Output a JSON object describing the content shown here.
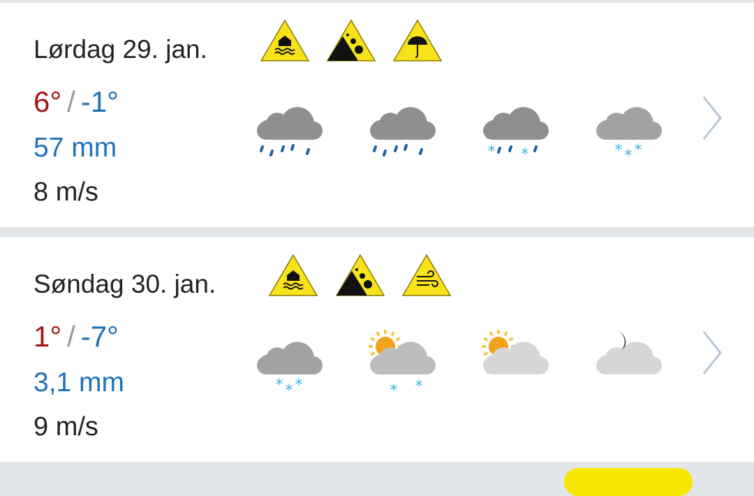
{
  "days": [
    {
      "title": "Lørdag 29. jan.",
      "temp_high": "6°",
      "temp_sep": "/",
      "temp_low": "-1°",
      "precipitation": "57 mm",
      "wind": "8 m/s",
      "warnings": [
        "flood-warning-icon",
        "landslide-warning-icon",
        "rain-warning-icon"
      ],
      "forecast_icons": [
        "cloud-heavy-rain-icon",
        "cloud-heavy-rain-icon",
        "cloud-sleet-icon",
        "cloud-snow-icon"
      ]
    },
    {
      "title": "Søndag 30. jan.",
      "temp_high": "1°",
      "temp_sep": "/",
      "temp_low": "-7°",
      "precipitation": "3,1 mm",
      "wind": "9 m/s",
      "warnings": [
        "flood-warning-icon",
        "landslide-warning-icon",
        "wind-warning-icon"
      ],
      "forecast_icons": [
        "cloud-snow-icon",
        "partly-cloudy-snow-icon",
        "partly-cloudy-day-icon",
        "partly-cloudy-night-icon"
      ]
    }
  ],
  "colors": {
    "temp_high": "#a31515",
    "temp_low": "#1f6fb2",
    "precipitation": "#1f72b8",
    "warning_yellow": "#f7e21c"
  }
}
